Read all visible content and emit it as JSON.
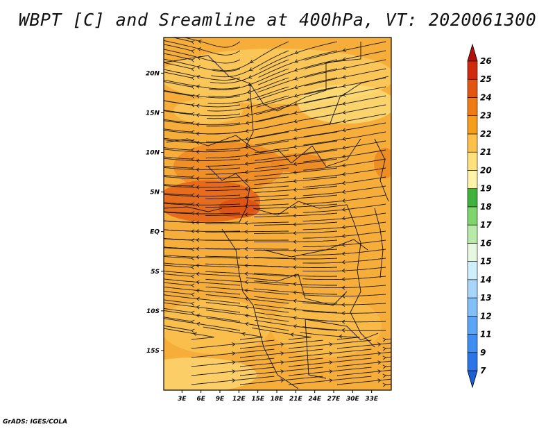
{
  "title": "WBPT [C] and Sreamline at 400hPa, VT: 2020061300",
  "credit": "GrADS: IGES/COLA",
  "lat_labels": [
    "20N",
    "15N",
    "10N",
    "5N",
    "EQ",
    "5S",
    "10S",
    "15S"
  ],
  "lon_labels": [
    "3E",
    "6E",
    "9E",
    "12E",
    "15E",
    "18E",
    "21E",
    "24E",
    "27E",
    "30E",
    "33E"
  ],
  "colorbar": {
    "labels": [
      "7",
      "9",
      "11",
      "12",
      "13",
      "14",
      "15",
      "16",
      "17",
      "18",
      "19",
      "20",
      "21",
      "22",
      "23",
      "24",
      "25",
      "26"
    ],
    "colors": [
      "#1a5fd6",
      "#2b75e6",
      "#3d8ef0",
      "#5aa5f5",
      "#80bff8",
      "#a8d6fb",
      "#cfeefc",
      "#e6f9e0",
      "#b7eaa6",
      "#7fd46b",
      "#3eb23a",
      "#fff3a8",
      "#ffe07a",
      "#fdc04a",
      "#f59e1c",
      "#ef7b12",
      "#e25510",
      "#cf2a0c",
      "#b2100a"
    ]
  },
  "map": {
    "lat_values": [
      20,
      15,
      10,
      5,
      0,
      -5,
      -10,
      -15
    ],
    "lon_values": [
      3,
      6,
      9,
      12,
      15,
      18,
      21,
      24,
      27,
      30,
      33
    ],
    "base_color": "#f6ad3a",
    "field_note": "WBPT mostly 20–22 C, warm core 23–24 C near 5N 5E–13E"
  }
}
